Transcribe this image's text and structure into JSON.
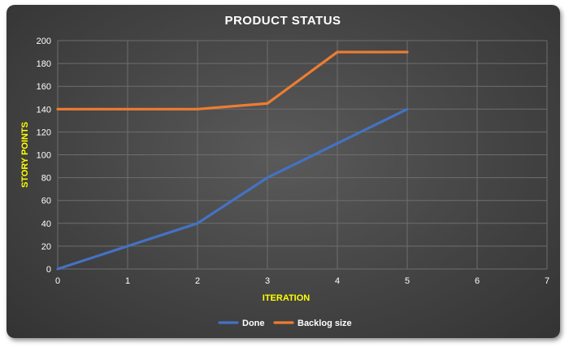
{
  "chart_data": {
    "type": "line",
    "title": "PRODUCT STATUS",
    "xlabel": "ITERATION",
    "ylabel": "STORY POINTS",
    "xlim": [
      0,
      7
    ],
    "ylim": [
      0,
      200
    ],
    "x_ticks": [
      0,
      1,
      2,
      3,
      4,
      5,
      6,
      7
    ],
    "y_ticks": [
      0,
      20,
      40,
      60,
      80,
      100,
      120,
      140,
      160,
      180,
      200
    ],
    "grid": "on",
    "legend_position": "bottom",
    "series": [
      {
        "name": "Done",
        "color": "#4472c4",
        "x": [
          0,
          1,
          2,
          3,
          4,
          5
        ],
        "values": [
          0,
          20,
          40,
          80,
          110,
          140
        ]
      },
      {
        "name": "Backlog size",
        "color": "#ed7d31",
        "x": [
          0,
          1,
          2,
          3,
          4,
          5
        ],
        "values": [
          140,
          140,
          140,
          145,
          190,
          190
        ]
      }
    ]
  }
}
